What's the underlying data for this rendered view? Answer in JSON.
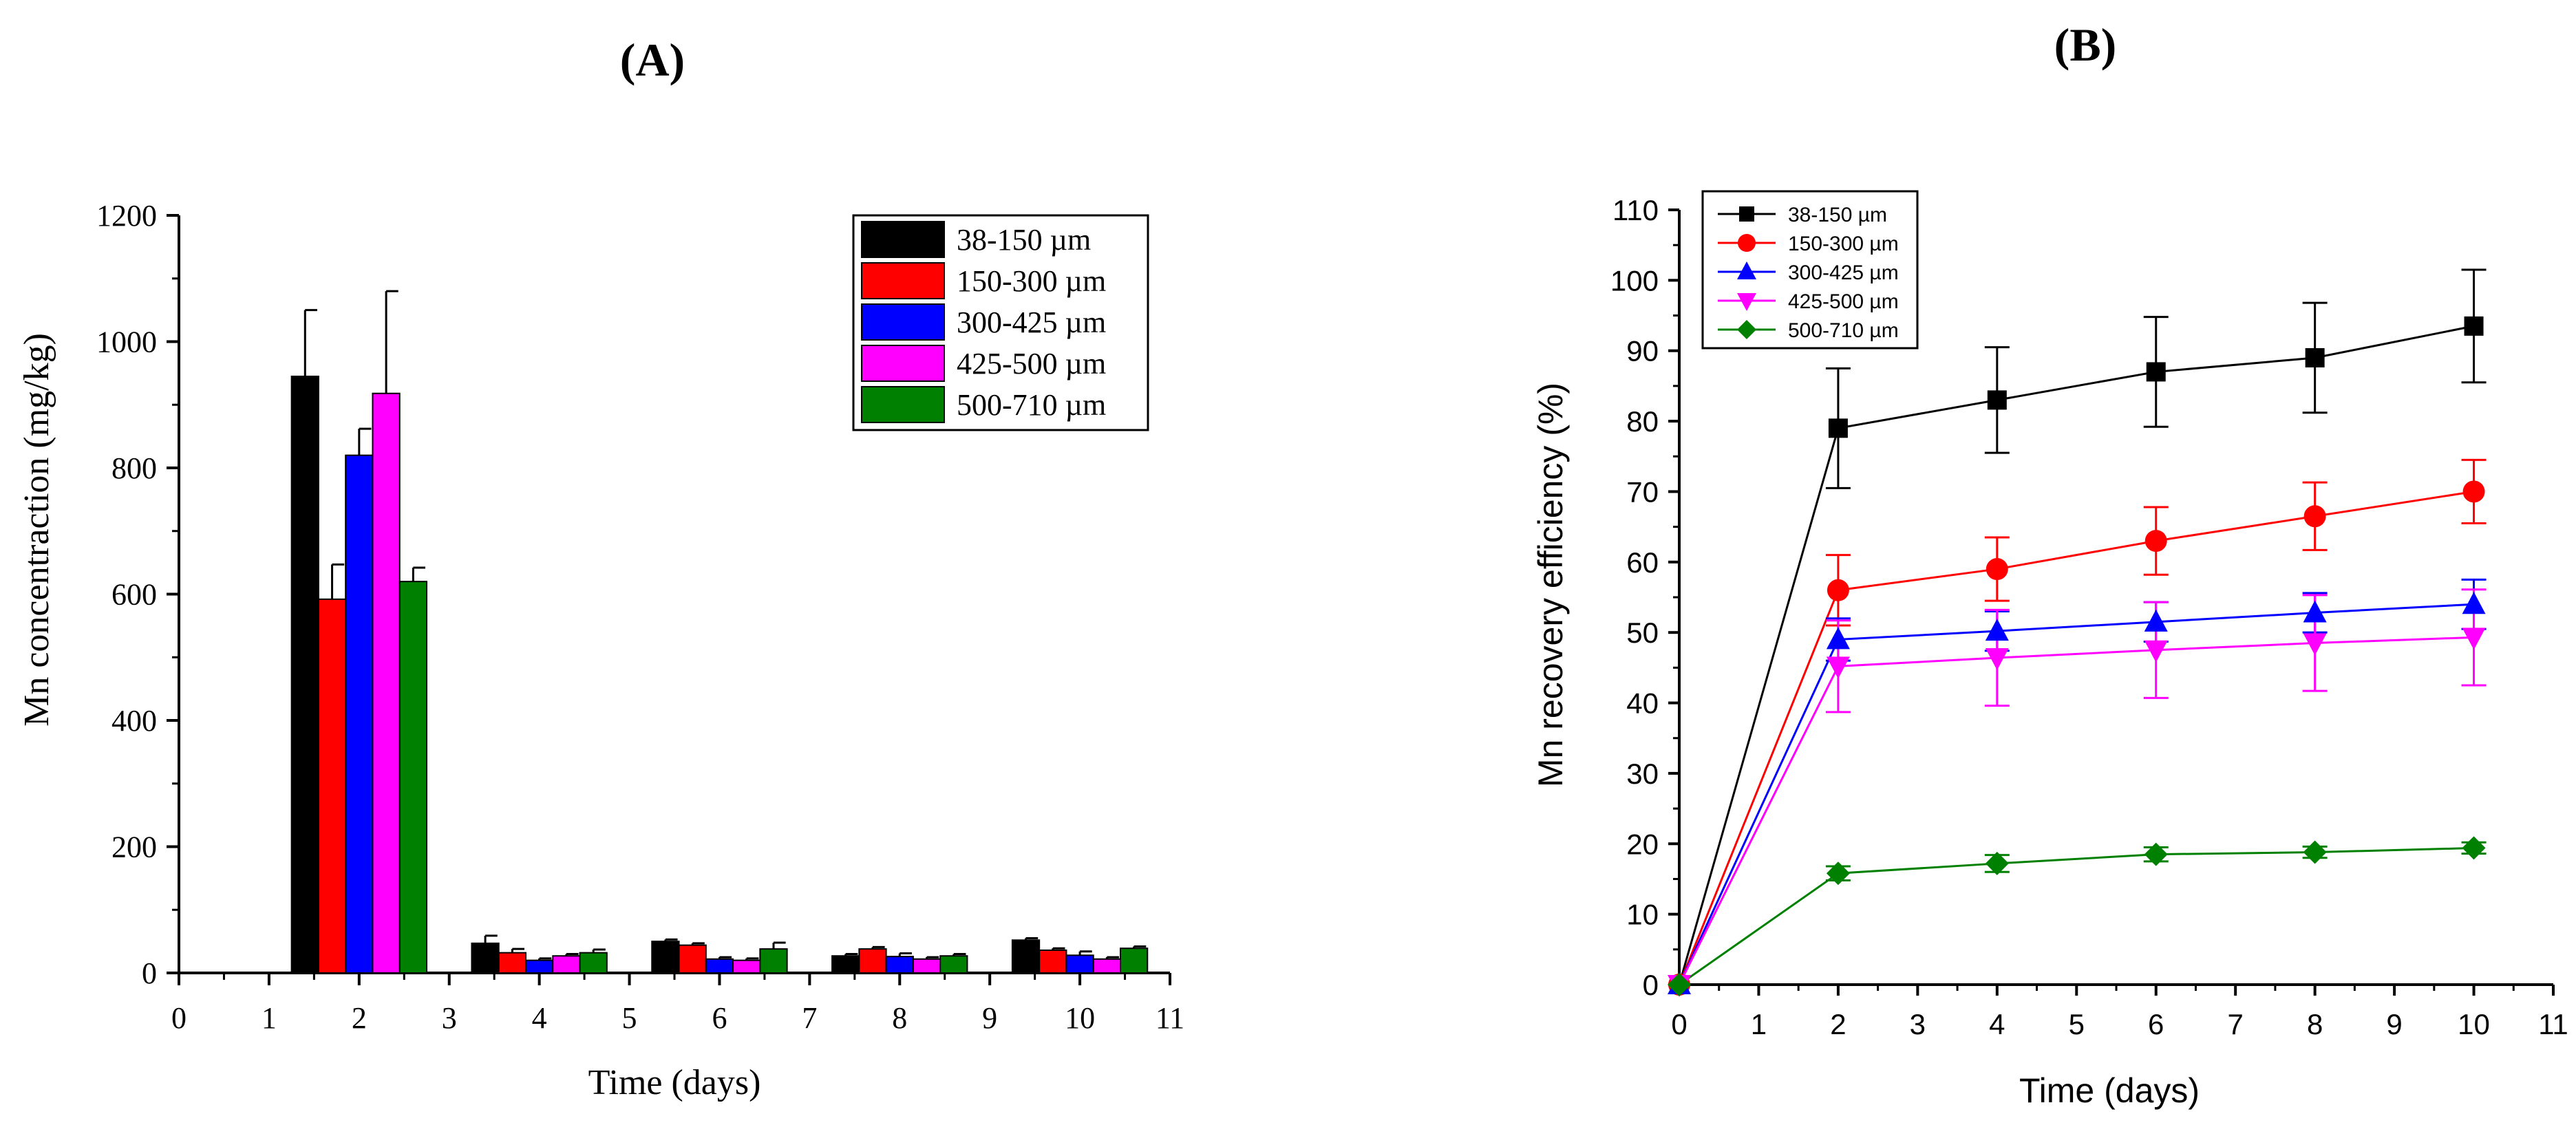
{
  "chart_data": [
    {
      "panel_label": "(A)",
      "type": "bar",
      "xlabel": "Time (days)",
      "ylabel": "Mn concentraction (mg/kg)",
      "xlim": [
        0,
        11
      ],
      "ylim": [
        0,
        1200
      ],
      "x_ticks": [
        "0",
        "1",
        "2",
        "3",
        "4",
        "5",
        "6",
        "7",
        "8",
        "9",
        "10",
        "11"
      ],
      "y_ticks": [
        "0",
        "200",
        "400",
        "600",
        "800",
        "1000",
        "1200"
      ],
      "categories": [
        2,
        4,
        6,
        8,
        10
      ],
      "series": [
        {
          "name": "38-150 µm",
          "color": "#000000",
          "values": [
            945,
            47,
            50,
            27,
            52
          ],
          "errors": [
            105,
            12,
            3,
            3,
            3
          ]
        },
        {
          "name": "150-300 µm",
          "color": "#ff0000",
          "values": [
            592,
            32,
            44,
            38,
            36
          ],
          "errors": [
            55,
            6,
            3,
            3,
            3
          ]
        },
        {
          "name": "300-425 µm",
          "color": "#0000ff",
          "values": [
            820,
            20,
            22,
            26,
            28
          ],
          "errors": [
            42,
            3,
            3,
            5,
            6
          ]
        },
        {
          "name": "425-500 µm",
          "color": "#ff00ff",
          "values": [
            918,
            27,
            20,
            22,
            22
          ],
          "errors": [
            162,
            3,
            3,
            3,
            3
          ]
        },
        {
          "name": "500-710 µm",
          "color": "#008000",
          "values": [
            620,
            32,
            38,
            27,
            39
          ],
          "errors": [
            22,
            5,
            10,
            3,
            3
          ]
        }
      ],
      "legend": "top-right"
    },
    {
      "panel_label": "(B)",
      "type": "line",
      "xlabel": "Time (days)",
      "ylabel": "Mn recovery efficiency (%)",
      "xlim": [
        0,
        11
      ],
      "ylim": [
        0,
        110
      ],
      "x_ticks": [
        "0",
        "1",
        "2",
        "3",
        "4",
        "5",
        "6",
        "7",
        "8",
        "9",
        "10",
        "11"
      ],
      "y_ticks": [
        "0",
        "10",
        "20",
        "30",
        "40",
        "50",
        "60",
        "70",
        "80",
        "90",
        "100",
        "110"
      ],
      "x": [
        0,
        2,
        4,
        6,
        8,
        10
      ],
      "series": [
        {
          "name": "38-150 µm",
          "color": "#000000",
          "marker": "square",
          "values": [
            0,
            79,
            83,
            87,
            89,
            93.5
          ],
          "errors": [
            0,
            8.5,
            7.5,
            7.8,
            7.8,
            8
          ]
        },
        {
          "name": "150-300 µm",
          "color": "#ff0000",
          "marker": "circle",
          "values": [
            0,
            56,
            59,
            63,
            66.5,
            70
          ],
          "errors": [
            0,
            5,
            4.5,
            4.8,
            4.8,
            4.5
          ]
        },
        {
          "name": "300-425 µm",
          "color": "#0000ff",
          "marker": "triangle-up",
          "values": [
            0,
            49,
            50.2,
            51.5,
            52.8,
            54
          ],
          "errors": [
            0,
            3,
            2.8,
            2.8,
            2.8,
            3.5
          ]
        },
        {
          "name": "425-500  µm",
          "color": "#ff00ff",
          "marker": "triangle-down",
          "values": [
            0,
            45.2,
            46.4,
            47.5,
            48.5,
            49.3
          ],
          "errors": [
            0,
            6.5,
            6.8,
            6.8,
            6.8,
            6.8
          ]
        },
        {
          "name": "500-710 µm",
          "color": "#008000",
          "marker": "diamond",
          "values": [
            0,
            15.8,
            17.2,
            18.5,
            18.8,
            19.4
          ],
          "errors": [
            0,
            1,
            1.2,
            1,
            0.8,
            0.8
          ]
        }
      ],
      "legend": "top-left"
    }
  ]
}
